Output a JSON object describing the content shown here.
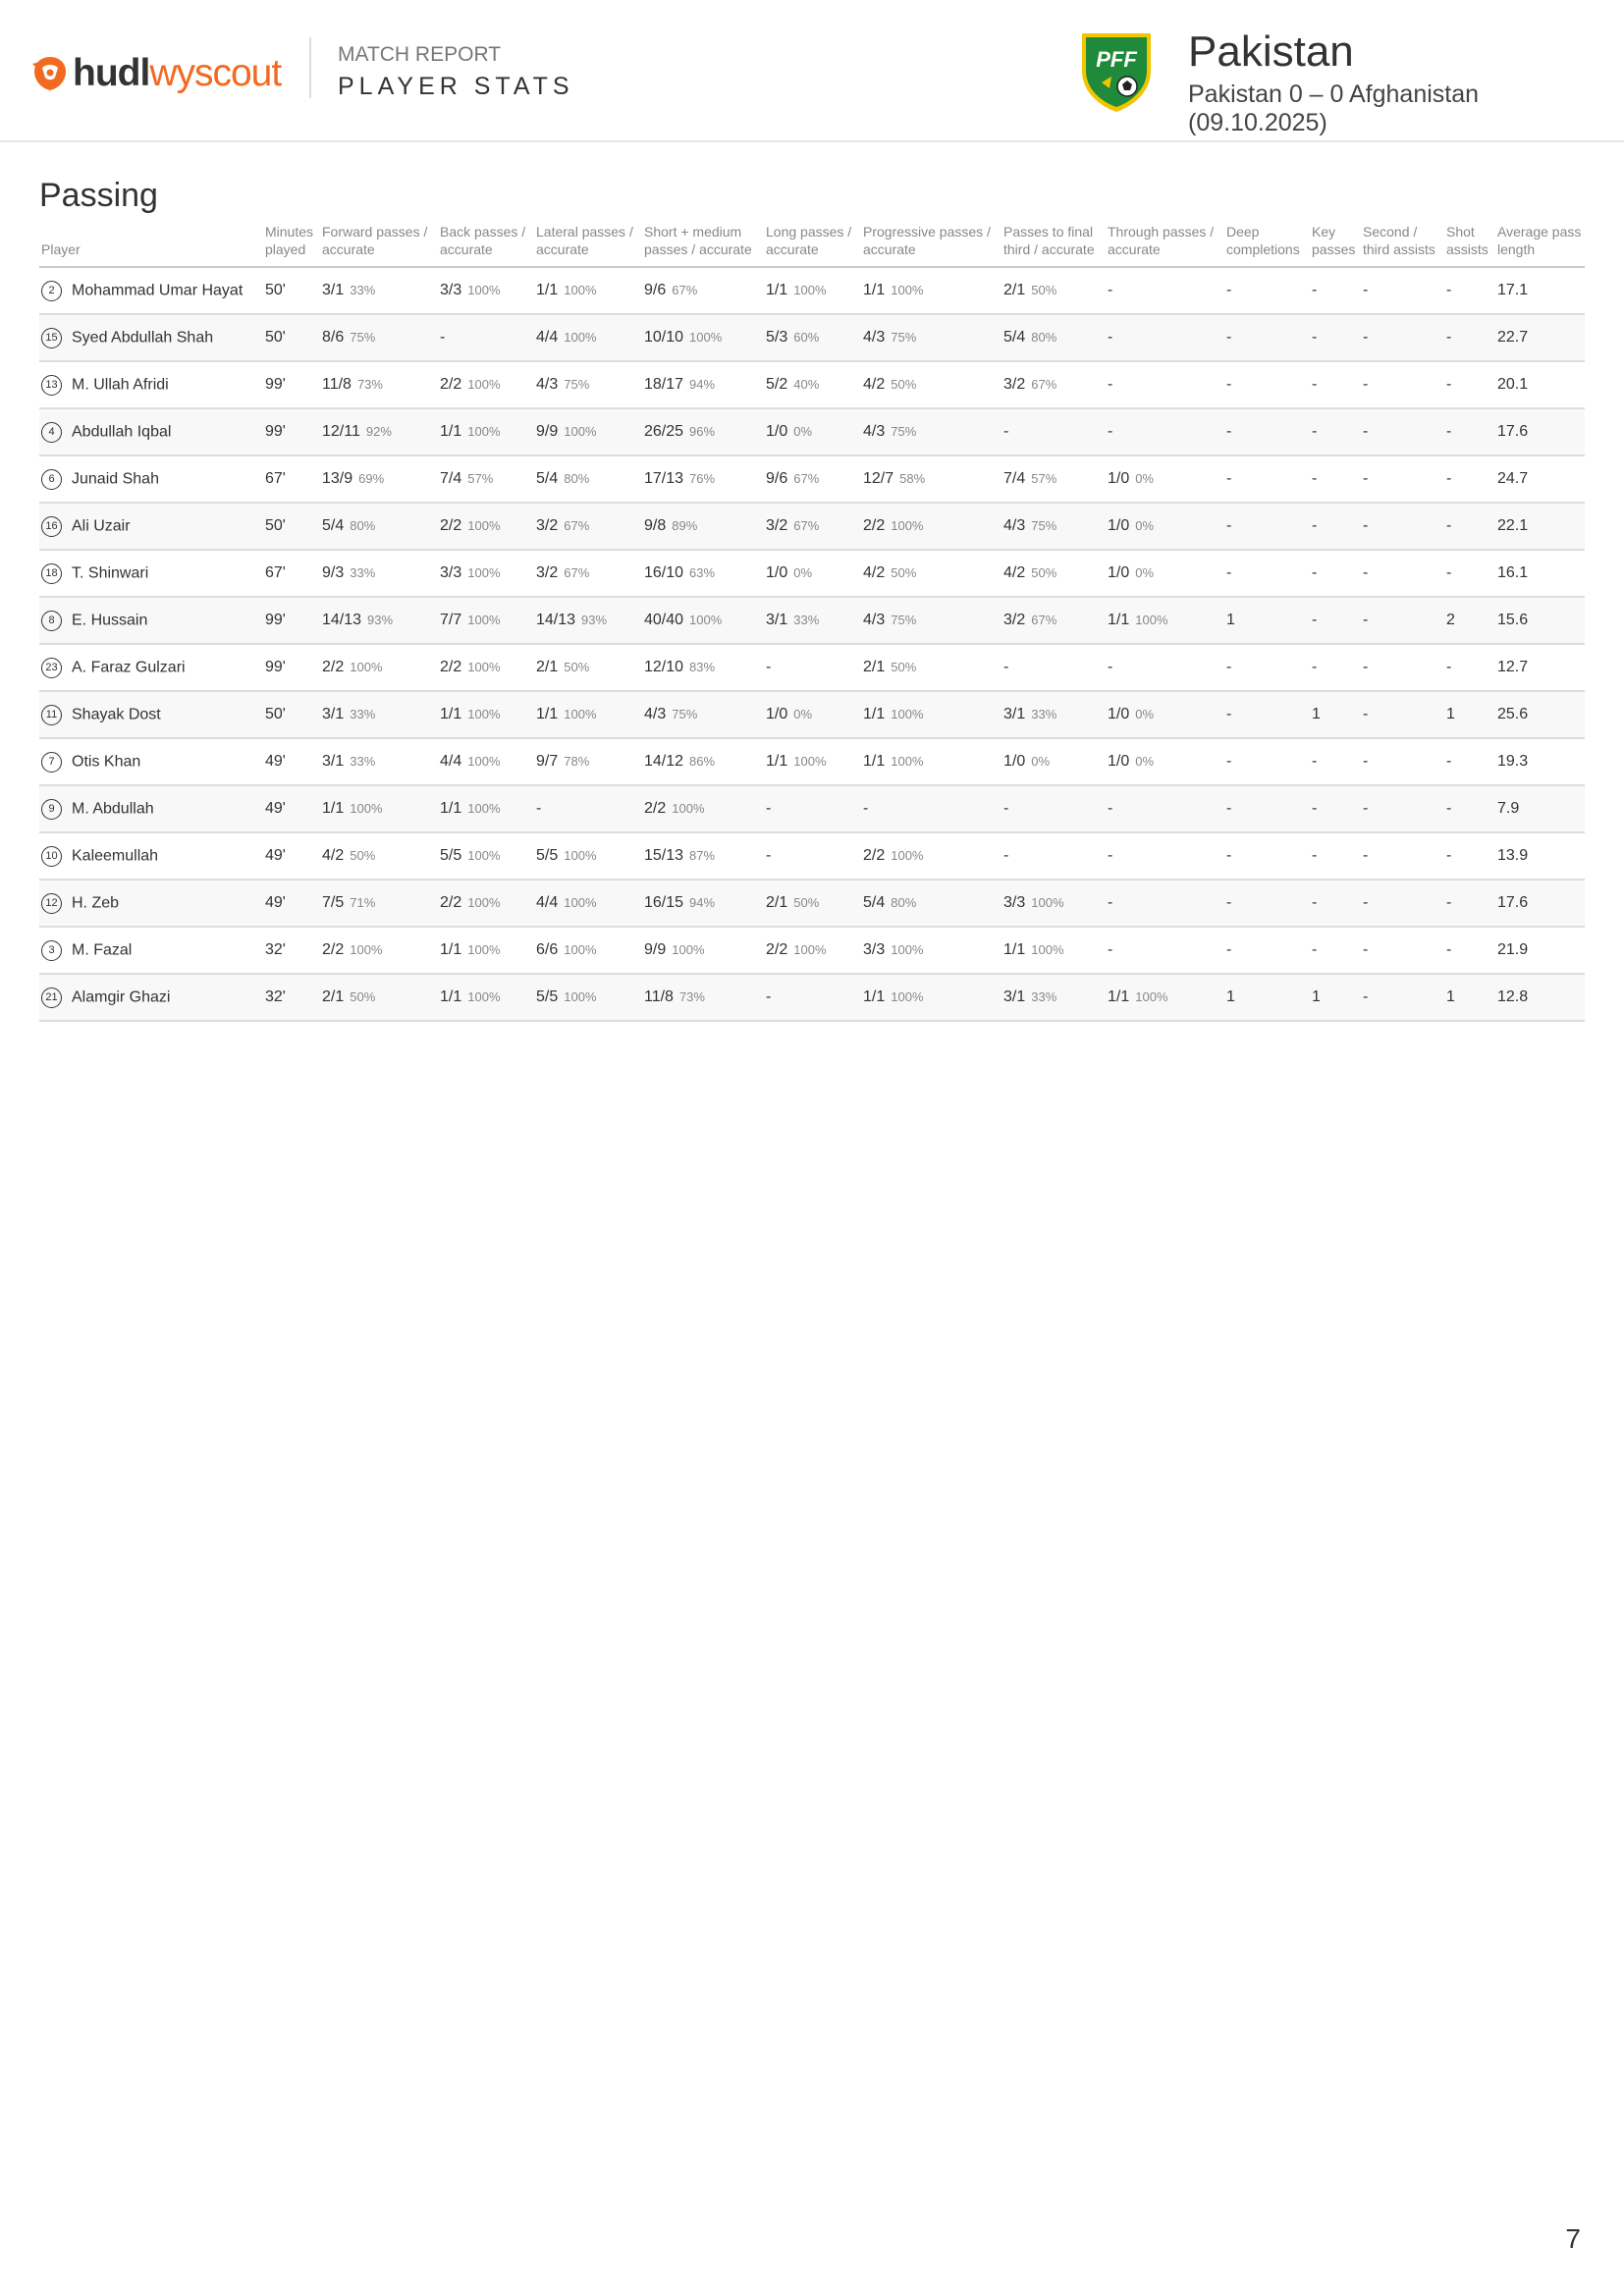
{
  "header": {
    "logo_hudl": "hudl",
    "logo_wyscout": "wyscout",
    "kicker": "MATCH REPORT",
    "title": "PLAYER STATS",
    "crest_text": "PFF",
    "team": "Pakistan",
    "match": "Pakistan 0 – 0 Afghanistan (09.10.2025)"
  },
  "colors": {
    "brand_orange": "#f26a21",
    "crest_green": "#1f8a3a",
    "crest_yellow": "#f2c500"
  },
  "section": {
    "title": "Passing"
  },
  "table": {
    "columns": [
      "Player",
      "Minutes played",
      "Forward passes / accurate",
      "Back passes / accurate",
      "Lateral passes / accurate",
      "Short + medium passes / accurate",
      "Long passes / accurate",
      "Progressive passes / accurate",
      "Passes to final third / accurate",
      "Through passes / accurate",
      "Deep completions",
      "Key passes",
      "Second / third assists",
      "Shot assists",
      "Average pass length"
    ],
    "rows": [
      {
        "num": "2",
        "name": "Mohammad Umar Hayat",
        "min": "50'",
        "fwd": "3/1",
        "fwd_p": "33%",
        "back": "3/3",
        "back_p": "100%",
        "lat": "1/1",
        "lat_p": "100%",
        "short": "9/6",
        "short_p": "67%",
        "long": "1/1",
        "long_p": "100%",
        "prog": "1/1",
        "prog_p": "100%",
        "final": "2/1",
        "final_p": "50%",
        "thr": "-",
        "thr_p": "",
        "deep": "-",
        "key": "-",
        "second": "-",
        "shot": "-",
        "avg": "17.1"
      },
      {
        "num": "15",
        "name": "Syed Abdullah Shah",
        "min": "50'",
        "fwd": "8/6",
        "fwd_p": "75%",
        "back": "-",
        "back_p": "",
        "lat": "4/4",
        "lat_p": "100%",
        "short": "10/10",
        "short_p": "100%",
        "long": "5/3",
        "long_p": "60%",
        "prog": "4/3",
        "prog_p": "75%",
        "final": "5/4",
        "final_p": "80%",
        "thr": "-",
        "thr_p": "",
        "deep": "-",
        "key": "-",
        "second": "-",
        "shot": "-",
        "avg": "22.7"
      },
      {
        "num": "13",
        "name": "M. Ullah Afridi",
        "min": "99'",
        "fwd": "11/8",
        "fwd_p": "73%",
        "back": "2/2",
        "back_p": "100%",
        "lat": "4/3",
        "lat_p": "75%",
        "short": "18/17",
        "short_p": "94%",
        "long": "5/2",
        "long_p": "40%",
        "prog": "4/2",
        "prog_p": "50%",
        "final": "3/2",
        "final_p": "67%",
        "thr": "-",
        "thr_p": "",
        "deep": "-",
        "key": "-",
        "second": "-",
        "shot": "-",
        "avg": "20.1"
      },
      {
        "num": "4",
        "name": "Abdullah Iqbal",
        "min": "99'",
        "fwd": "12/11",
        "fwd_p": "92%",
        "back": "1/1",
        "back_p": "100%",
        "lat": "9/9",
        "lat_p": "100%",
        "short": "26/25",
        "short_p": "96%",
        "long": "1/0",
        "long_p": "0%",
        "prog": "4/3",
        "prog_p": "75%",
        "final": "-",
        "final_p": "",
        "thr": "-",
        "thr_p": "",
        "deep": "-",
        "key": "-",
        "second": "-",
        "shot": "-",
        "avg": "17.6"
      },
      {
        "num": "6",
        "name": "Junaid Shah",
        "min": "67'",
        "fwd": "13/9",
        "fwd_p": "69%",
        "back": "7/4",
        "back_p": "57%",
        "lat": "5/4",
        "lat_p": "80%",
        "short": "17/13",
        "short_p": "76%",
        "long": "9/6",
        "long_p": "67%",
        "prog": "12/7",
        "prog_p": "58%",
        "final": "7/4",
        "final_p": "57%",
        "thr": "1/0",
        "thr_p": "0%",
        "deep": "-",
        "key": "-",
        "second": "-",
        "shot": "-",
        "avg": "24.7"
      },
      {
        "num": "16",
        "name": "Ali Uzair",
        "min": "50'",
        "fwd": "5/4",
        "fwd_p": "80%",
        "back": "2/2",
        "back_p": "100%",
        "lat": "3/2",
        "lat_p": "67%",
        "short": "9/8",
        "short_p": "89%",
        "long": "3/2",
        "long_p": "67%",
        "prog": "2/2",
        "prog_p": "100%",
        "final": "4/3",
        "final_p": "75%",
        "thr": "1/0",
        "thr_p": "0%",
        "deep": "-",
        "key": "-",
        "second": "-",
        "shot": "-",
        "avg": "22.1"
      },
      {
        "num": "18",
        "name": "T. Shinwari",
        "min": "67'",
        "fwd": "9/3",
        "fwd_p": "33%",
        "back": "3/3",
        "back_p": "100%",
        "lat": "3/2",
        "lat_p": "67%",
        "short": "16/10",
        "short_p": "63%",
        "long": "1/0",
        "long_p": "0%",
        "prog": "4/2",
        "prog_p": "50%",
        "final": "4/2",
        "final_p": "50%",
        "thr": "1/0",
        "thr_p": "0%",
        "deep": "-",
        "key": "-",
        "second": "-",
        "shot": "-",
        "avg": "16.1"
      },
      {
        "num": "8",
        "name": "E. Hussain",
        "min": "99'",
        "fwd": "14/13",
        "fwd_p": "93%",
        "back": "7/7",
        "back_p": "100%",
        "lat": "14/13",
        "lat_p": "93%",
        "short": "40/40",
        "short_p": "100%",
        "long": "3/1",
        "long_p": "33%",
        "prog": "4/3",
        "prog_p": "75%",
        "final": "3/2",
        "final_p": "67%",
        "thr": "1/1",
        "thr_p": "100%",
        "deep": "1",
        "key": "-",
        "second": "-",
        "shot": "2",
        "avg": "15.6"
      },
      {
        "num": "23",
        "name": "A. Faraz Gulzari",
        "min": "99'",
        "fwd": "2/2",
        "fwd_p": "100%",
        "back": "2/2",
        "back_p": "100%",
        "lat": "2/1",
        "lat_p": "50%",
        "short": "12/10",
        "short_p": "83%",
        "long": "-",
        "long_p": "",
        "prog": "2/1",
        "prog_p": "50%",
        "final": "-",
        "final_p": "",
        "thr": "-",
        "thr_p": "",
        "deep": "-",
        "key": "-",
        "second": "-",
        "shot": "-",
        "avg": "12.7"
      },
      {
        "num": "11",
        "name": "Shayak Dost",
        "min": "50'",
        "fwd": "3/1",
        "fwd_p": "33%",
        "back": "1/1",
        "back_p": "100%",
        "lat": "1/1",
        "lat_p": "100%",
        "short": "4/3",
        "short_p": "75%",
        "long": "1/0",
        "long_p": "0%",
        "prog": "1/1",
        "prog_p": "100%",
        "final": "3/1",
        "final_p": "33%",
        "thr": "1/0",
        "thr_p": "0%",
        "deep": "-",
        "key": "1",
        "second": "-",
        "shot": "1",
        "avg": "25.6"
      },
      {
        "num": "7",
        "name": "Otis Khan",
        "min": "49'",
        "fwd": "3/1",
        "fwd_p": "33%",
        "back": "4/4",
        "back_p": "100%",
        "lat": "9/7",
        "lat_p": "78%",
        "short": "14/12",
        "short_p": "86%",
        "long": "1/1",
        "long_p": "100%",
        "prog": "1/1",
        "prog_p": "100%",
        "final": "1/0",
        "final_p": "0%",
        "thr": "1/0",
        "thr_p": "0%",
        "deep": "-",
        "key": "-",
        "second": "-",
        "shot": "-",
        "avg": "19.3"
      },
      {
        "num": "9",
        "name": "M. Abdullah",
        "min": "49'",
        "fwd": "1/1",
        "fwd_p": "100%",
        "back": "1/1",
        "back_p": "100%",
        "lat": "-",
        "lat_p": "",
        "short": "2/2",
        "short_p": "100%",
        "long": "-",
        "long_p": "",
        "prog": "-",
        "prog_p": "",
        "final": "-",
        "final_p": "",
        "thr": "-",
        "thr_p": "",
        "deep": "-",
        "key": "-",
        "second": "-",
        "shot": "-",
        "avg": "7.9"
      },
      {
        "num": "10",
        "name": "Kaleemullah",
        "min": "49'",
        "fwd": "4/2",
        "fwd_p": "50%",
        "back": "5/5",
        "back_p": "100%",
        "lat": "5/5",
        "lat_p": "100%",
        "short": "15/13",
        "short_p": "87%",
        "long": "-",
        "long_p": "",
        "prog": "2/2",
        "prog_p": "100%",
        "final": "-",
        "final_p": "",
        "thr": "-",
        "thr_p": "",
        "deep": "-",
        "key": "-",
        "second": "-",
        "shot": "-",
        "avg": "13.9"
      },
      {
        "num": "12",
        "name": "H. Zeb",
        "min": "49'",
        "fwd": "7/5",
        "fwd_p": "71%",
        "back": "2/2",
        "back_p": "100%",
        "lat": "4/4",
        "lat_p": "100%",
        "short": "16/15",
        "short_p": "94%",
        "long": "2/1",
        "long_p": "50%",
        "prog": "5/4",
        "prog_p": "80%",
        "final": "3/3",
        "final_p": "100%",
        "thr": "-",
        "thr_p": "",
        "deep": "-",
        "key": "-",
        "second": "-",
        "shot": "-",
        "avg": "17.6"
      },
      {
        "num": "3",
        "name": "M. Fazal",
        "min": "32'",
        "fwd": "2/2",
        "fwd_p": "100%",
        "back": "1/1",
        "back_p": "100%",
        "lat": "6/6",
        "lat_p": "100%",
        "short": "9/9",
        "short_p": "100%",
        "long": "2/2",
        "long_p": "100%",
        "prog": "3/3",
        "prog_p": "100%",
        "final": "1/1",
        "final_p": "100%",
        "thr": "-",
        "thr_p": "",
        "deep": "-",
        "key": "-",
        "second": "-",
        "shot": "-",
        "avg": "21.9"
      },
      {
        "num": "21",
        "name": "Alamgir Ghazi",
        "min": "32'",
        "fwd": "2/1",
        "fwd_p": "50%",
        "back": "1/1",
        "back_p": "100%",
        "lat": "5/5",
        "lat_p": "100%",
        "short": "11/8",
        "short_p": "73%",
        "long": "-",
        "long_p": "",
        "prog": "1/1",
        "prog_p": "100%",
        "final": "3/1",
        "final_p": "33%",
        "thr": "1/1",
        "thr_p": "100%",
        "deep": "1",
        "key": "1",
        "second": "-",
        "shot": "1",
        "avg": "12.8"
      }
    ]
  },
  "footer": {
    "page_number": "7"
  }
}
